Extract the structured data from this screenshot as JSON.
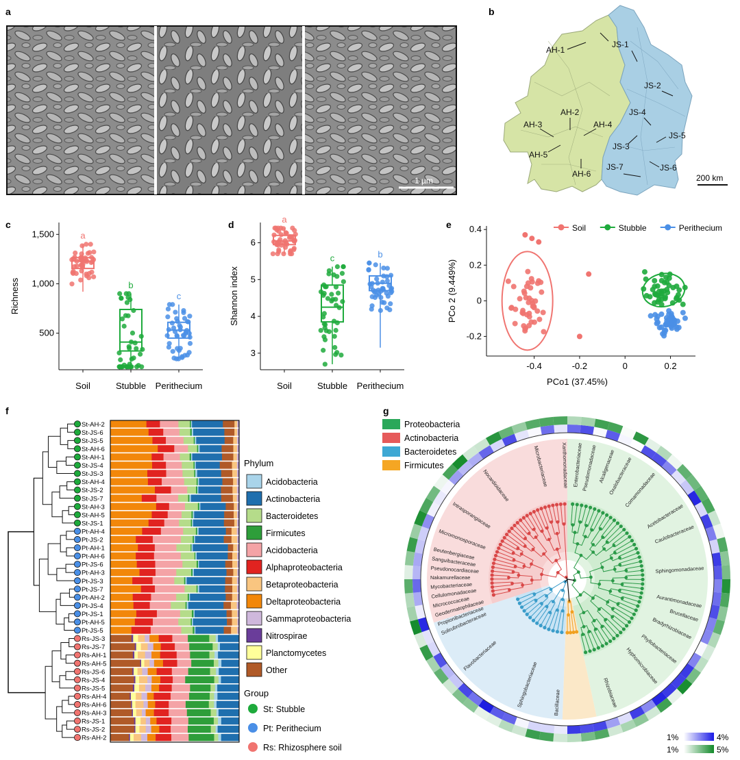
{
  "panel_letters": {
    "a": "a",
    "b": "b",
    "c": "c",
    "d": "d",
    "e": "e",
    "f": "f",
    "g": "g"
  },
  "sem": {
    "scale_label": "1 µm"
  },
  "map": {
    "scale_label": "200 km",
    "ah_color": "#d6e4a6",
    "js_color": "#a9cfe4",
    "sites": [
      "AH-1",
      "AH-2",
      "AH-3",
      "AH-4",
      "AH-5",
      "AH-6",
      "JS-1",
      "JS-2",
      "JS-3",
      "JS-4",
      "JS-5",
      "JS-6",
      "JS-7"
    ]
  },
  "colors": {
    "soil": "#f07470",
    "stubble": "#1eaa3c",
    "perithecium": "#4a8fe6"
  },
  "chart_data": [
    {
      "panel": "c",
      "type": "box",
      "categories": [
        "Soil",
        "Stubble",
        "Perithecium"
      ],
      "ylabel": "Richness",
      "yticks": [
        "500",
        "1,000",
        "1,500"
      ],
      "ytick_values": [
        500,
        1000,
        1500
      ],
      "ylim": [
        130,
        1620
      ],
      "letters": [
        "a",
        "b",
        "c"
      ],
      "series": [
        {
          "q1": 1155,
          "median": 1230,
          "q3": 1265,
          "low": 920,
          "high": 1400
        },
        {
          "q1": 320,
          "median": 410,
          "q3": 740,
          "low": 160,
          "high": 900
        },
        {
          "q1": 450,
          "median": 530,
          "q3": 610,
          "low": 240,
          "high": 790
        }
      ]
    },
    {
      "panel": "d",
      "type": "box",
      "categories": [
        "Soil",
        "Stubble",
        "Perithecium"
      ],
      "ylabel": "Shannon index",
      "yticks": [
        "3",
        "4",
        "5",
        "6"
      ],
      "ytick_values": [
        3,
        4,
        5,
        6
      ],
      "ylim": [
        2.55,
        6.55
      ],
      "letters": [
        "a",
        "c",
        "b"
      ],
      "series": [
        {
          "q1": 5.95,
          "median": 6.05,
          "q3": 6.2,
          "low": 5.7,
          "high": 6.4
        },
        {
          "q1": 3.85,
          "median": 4.25,
          "q3": 4.85,
          "low": 2.7,
          "high": 5.35
        },
        {
          "q1": 4.7,
          "median": 4.9,
          "q3": 5.1,
          "low": 3.15,
          "high": 5.45
        }
      ]
    },
    {
      "panel": "e",
      "type": "scatter",
      "xlabel": "PCo1 (37.45%)",
      "ylabel": "PCo 2 (9.449%)",
      "xticks": [
        "-0.4",
        "-0.2",
        "0",
        "0.2"
      ],
      "xtick_values": [
        -0.4,
        -0.2,
        0,
        0.2
      ],
      "yticks": [
        "-0.2",
        "0",
        "0.2",
        "0.4"
      ],
      "ytick_values": [
        -0.2,
        0,
        0.2,
        0.4
      ],
      "xlim": [
        -0.61,
        0.31
      ],
      "ylim": [
        -0.31,
        0.42
      ],
      "legend": [
        "Soil",
        "Stubble",
        "Perithecium"
      ],
      "groups": [
        {
          "name": "Soil",
          "center": [
            -0.43,
            0.0
          ],
          "spread": [
            0.05,
            0.13
          ]
        },
        {
          "name": "Stubble",
          "center": [
            0.17,
            0.06
          ],
          "spread": [
            0.06,
            0.07
          ]
        },
        {
          "name": "Perithecium",
          "center": [
            0.19,
            -0.12
          ],
          "spread": [
            0.05,
            0.04
          ]
        }
      ]
    },
    {
      "panel": "f",
      "type": "stacked-bar",
      "legend_title": "Phylum",
      "group_title": "Group",
      "categories": [
        "Acidobacteria",
        "Actinobacteria",
        "Bacteroidetes",
        "Firmicutes",
        "Acidobacteria",
        "Alphaproteobacteria",
        "Betaproteobacteria",
        "Deltaproteobacteria",
        "Gammaproteobacteria",
        "Nitrospirae",
        "Planctomycetes",
        "Other"
      ],
      "category_colors": [
        "#a9d4ea",
        "#1f6fae",
        "#b5dc8a",
        "#2e9e3a",
        "#f4a3a6",
        "#e12320",
        "#f9c580",
        "#f2870a",
        "#cfb8dc",
        "#6a3d9a",
        "#ffff9a",
        "#b05a28"
      ],
      "groups": [
        {
          "label": "St: Stubble",
          "color": "#1eaa3c"
        },
        {
          "label": "Pt: Perithecium",
          "color": "#4a8fe6"
        },
        {
          "label": "Rs: Rhizosphere soil",
          "color": "#f07470"
        }
      ],
      "samples": [
        "St-AH-2",
        "St-JS-6",
        "St-JS-5",
        "St-AH-6",
        "St-AH-1",
        "St-JS-4",
        "St-JS-3",
        "St-AH-4",
        "St-JS-2",
        "St-JS-7",
        "St-AH-3",
        "St-AH-5",
        "St-JS-1",
        "Pt-AH-4",
        "Pt-JS-2",
        "Pt-AH-1",
        "Pt-AH-6",
        "Pt-JS-6",
        "Pt-AH-3",
        "Pt-JS-3",
        "Pt-JS-7",
        "Pt-AH-2",
        "Pt-JS-4",
        "Pt-JS-1",
        "Pt-AH-5",
        "Pt-JS-5",
        "Rs-JS-3",
        "Rs-JS-7",
        "Rs-AH-1",
        "Rs-AH-5",
        "Rs-JS-6",
        "Rs-JS-4",
        "Rs-JS-5",
        "Rs-AH-4",
        "Rs-AH-6",
        "Rs-AH-3",
        "Rs-JS-1",
        "Rs-JS-2",
        "Rs-AH-2"
      ]
    },
    {
      "panel": "g",
      "type": "tree",
      "legend": [
        "Proteobacteria",
        "Actinobacteria",
        "Bacteroidetes",
        "Firmicutes"
      ],
      "legend_colors": [
        "#2aa85a",
        "#e65a5a",
        "#3ea8d4",
        "#f5a623"
      ],
      "families": [
        "Microbacteriaceae",
        "Nocardioidaceae",
        "Intrasporangiaceae",
        "Micromonosporaceae",
        "Beutenbergiaceae",
        "Sanguibacteraceae",
        "Pseudonocardiaceae",
        "Nakamurellaceae",
        "Mycobacteriaceae",
        "Cellulomonadaceae",
        "Micrococcaceae",
        "Geodermatophilaceae",
        "Propionibacteriaceae",
        "Solirubrobacteraceae",
        "Flavobacteriaceae",
        "Sphingobacteriaceae",
        "Bacillaceae",
        "Rhizobiaceae",
        "Hyphomicrobiaceae",
        "Phyllobacteriaceae",
        "Bradyrhizobiaceae",
        "Brucellaceae",
        "Aurantimonadaceae",
        "Sphingomonadaceae",
        "Caulobacteraceae",
        "Acetobacteraceae",
        "Comamonadaceae",
        "Oxalobacteraceae",
        "Alcaligenaceae",
        "Pseudomonadaceae",
        "Enterobacteriaceae",
        "Xanthomonadaceae"
      ],
      "scale_labels": [
        "1%",
        "4%",
        "1%",
        "5%"
      ]
    }
  ]
}
